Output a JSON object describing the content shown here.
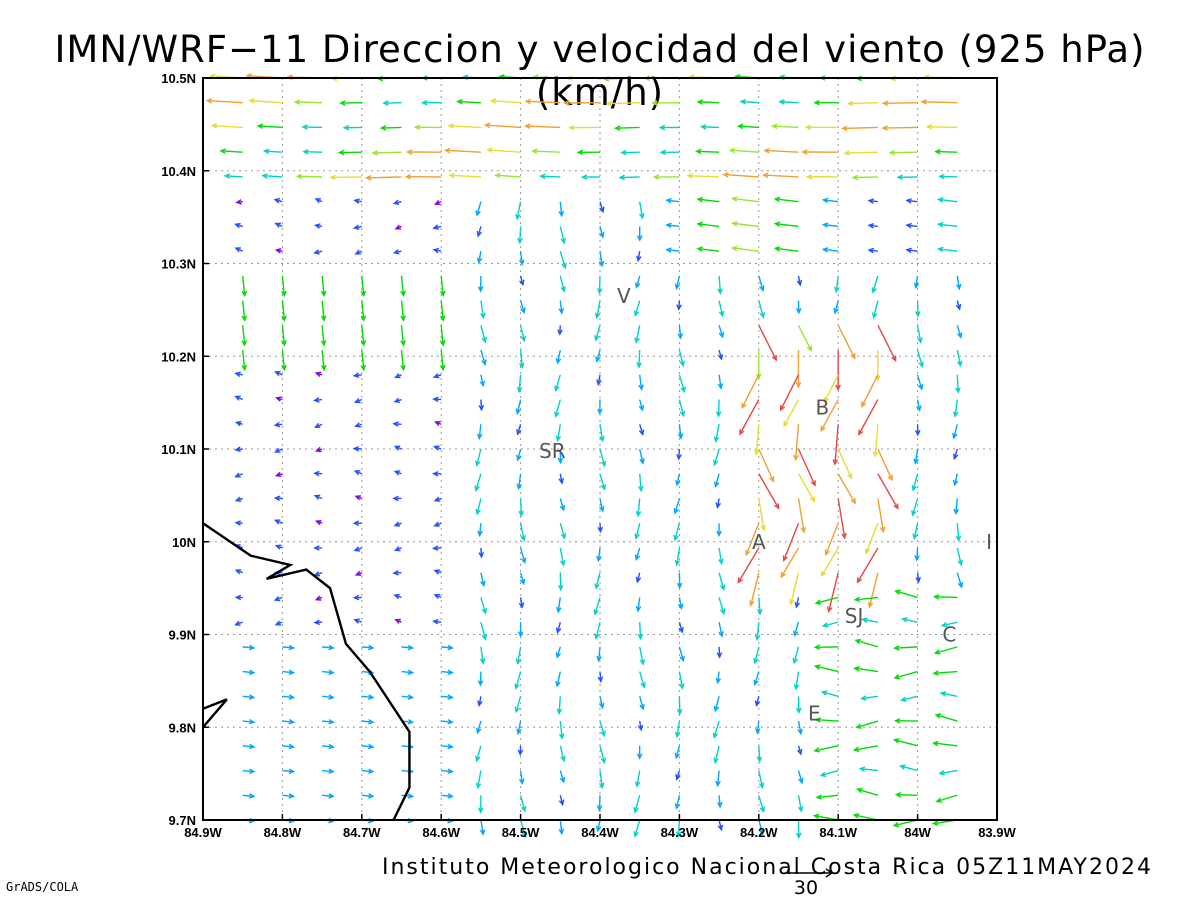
{
  "title": "IMN/WRF−11 Direccion y velocidad del viento (925 hPa)(km/h)",
  "footer": {
    "credit": "Instituto Meteorologico Nacional Costa Rica 05Z11MAY2024",
    "software": "GrADS/COLA",
    "scale_value": "30"
  },
  "map": {
    "lon_range": [
      -84.9,
      -83.9
    ],
    "lat_range": [
      9.7,
      10.5
    ],
    "x_ticks": [
      "84.9W",
      "84.8W",
      "84.7W",
      "84.6W",
      "84.5W",
      "84.4W",
      "84.3W",
      "84.2W",
      "84.1W",
      "84W",
      "83.9W"
    ],
    "y_ticks": [
      "9.7N",
      "9.8N",
      "9.9N",
      "10N",
      "10.1N",
      "10.2N",
      "10.3N",
      "10.4N",
      "10.5N"
    ],
    "grid": true,
    "places": [
      {
        "label": "V",
        "lon": -84.37,
        "lat": 10.265
      },
      {
        "label": "B",
        "lon": -84.12,
        "lat": 10.145
      },
      {
        "label": "SR",
        "lon": -84.46,
        "lat": 10.098
      },
      {
        "label": "A",
        "lon": -84.2,
        "lat": 10.0
      },
      {
        "label": "I",
        "lon": -83.91,
        "lat": 10.0
      },
      {
        "label": "SJ",
        "lon": -84.08,
        "lat": 9.92
      },
      {
        "label": "C",
        "lon": -83.96,
        "lat": 9.9
      },
      {
        "label": "E",
        "lon": -84.13,
        "lat": 9.815
      }
    ],
    "coastline": [
      [
        -84.9,
        10.02
      ],
      [
        -84.84,
        9.985
      ],
      [
        -84.79,
        9.975
      ],
      [
        -84.82,
        9.96
      ],
      [
        -84.77,
        9.97
      ],
      [
        -84.74,
        9.95
      ],
      [
        -84.72,
        9.89
      ],
      [
        -84.69,
        9.86
      ],
      [
        -84.64,
        9.795
      ],
      [
        -84.64,
        9.735
      ],
      [
        -84.66,
        9.7
      ]
    ],
    "island": [
      [
        -84.9,
        9.82
      ],
      [
        -84.87,
        9.83
      ],
      [
        -84.9,
        9.8
      ]
    ],
    "color_scale": [
      "#8a00e6",
      "#2050ff",
      "#00a6ff",
      "#00d2c8",
      "#00dc00",
      "#96e632",
      "#e6dc32",
      "#f0a030",
      "#e64646",
      "#d2007a"
    ]
  }
}
